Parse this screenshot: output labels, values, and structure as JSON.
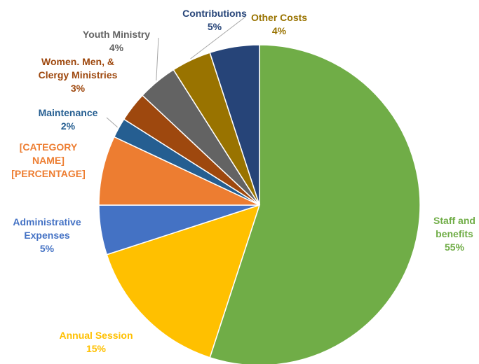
{
  "chart_data": {
    "type": "pie",
    "title": "",
    "slices": [
      {
        "label": "Staff and benefits",
        "value": 55,
        "display": "55%",
        "color": "#70ad47",
        "label_color": "#70ad47"
      },
      {
        "label": "Annual Session",
        "value": 15,
        "display": "15%",
        "color": "#ffc000",
        "label_color": "#ffc000"
      },
      {
        "label": "Administrative Expenses",
        "value": 5,
        "display": "5%",
        "color": "#4472c4",
        "label_color": "#4472c4"
      },
      {
        "label": "[CATEGORY NAME]",
        "value": 7,
        "display": "[PERCENTAGE]",
        "color": "#ed7d31",
        "label_color": "#ed7d31"
      },
      {
        "label": "Maintenance",
        "value": 2,
        "display": "2%",
        "color": "#255e91",
        "label_color": "#255e91"
      },
      {
        "label": "Women. Men, & Clergy Ministries",
        "value": 3,
        "display": "3%",
        "color": "#9e480e",
        "label_color": "#9e480e"
      },
      {
        "label": "Youth Ministry",
        "value": 4,
        "display": "4%",
        "color": "#636363",
        "label_color": "#636363"
      },
      {
        "label": "Other Costs",
        "value": 4,
        "display": "4%",
        "color": "#997300",
        "label_color": "#997300"
      },
      {
        "label": "Contributions",
        "value": 5,
        "display": "5%",
        "color": "#264478",
        "label_color": "#264478"
      }
    ]
  }
}
